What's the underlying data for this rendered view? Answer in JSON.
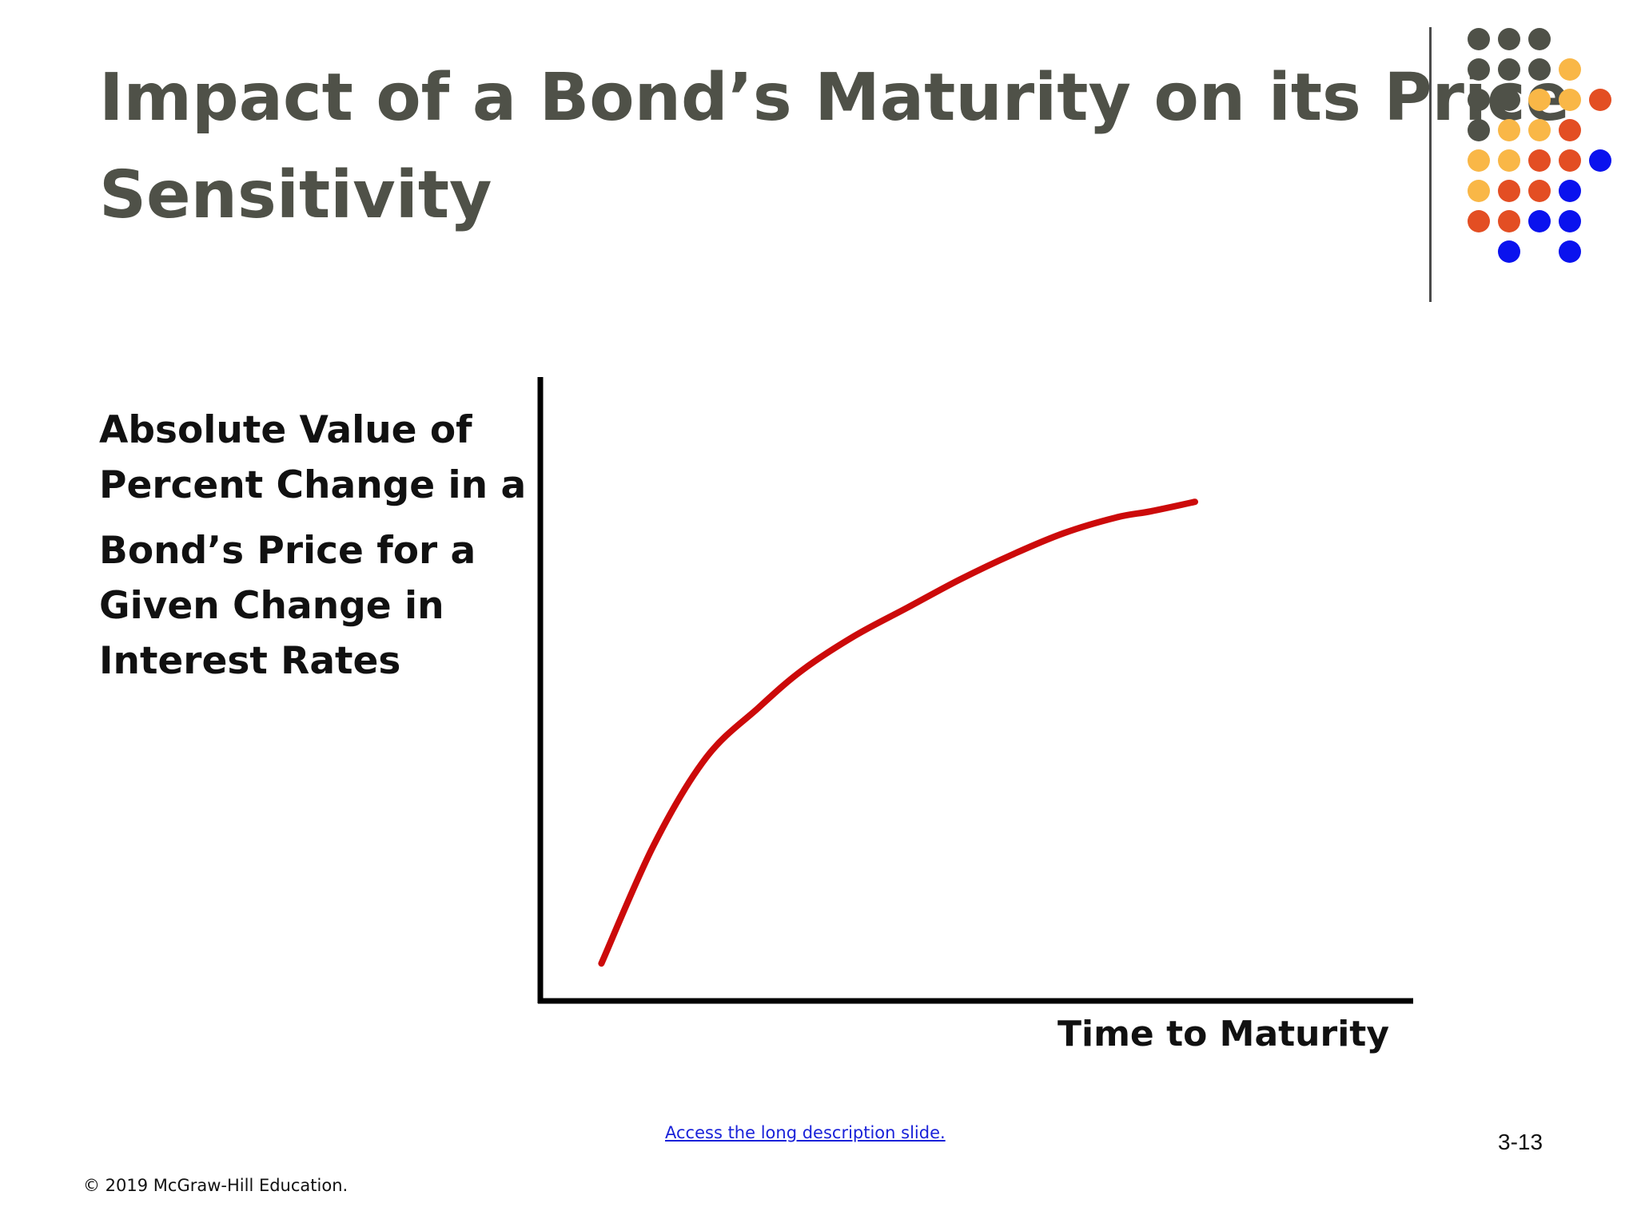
{
  "slide": {
    "title_lines": [
      "Impact of a Bond’s Maturity on its Price",
      "Sensitivity"
    ],
    "link_text": "Access the long description slide.",
    "slide_number": "3-13",
    "copyright": "© 2019 McGraw-Hill Education."
  },
  "colors": {
    "title": "#4f5148",
    "curve": "#cc0a0a",
    "axis": "#000000",
    "link": "#1a22d9",
    "dots": {
      "gray": "#4f5148",
      "yellow": "#f9b747",
      "orange": "#e34e23",
      "blue": "#0a12ee"
    }
  },
  "decor": {
    "dot_grid": [
      [
        "gray",
        "gray",
        "gray",
        null,
        null
      ],
      [
        "gray",
        "gray",
        "gray",
        "yellow",
        null
      ],
      [
        "gray",
        "gray",
        "yellow",
        "yellow",
        "orange"
      ],
      [
        "gray",
        "yellow",
        "yellow",
        "orange",
        null
      ],
      [
        "yellow",
        "yellow",
        "orange",
        "orange",
        "blue"
      ],
      [
        "yellow",
        "orange",
        "orange",
        "blue",
        null
      ],
      [
        "orange",
        "orange",
        "blue",
        "blue",
        null
      ],
      [
        null,
        "blue",
        null,
        "blue",
        null
      ]
    ]
  },
  "chart_data": {
    "type": "line",
    "title": "",
    "ylabel_lines": [
      "Absolute Value of",
      "Percent Change in a",
      "Bond’s Price for a",
      "Given Change in",
      "Interest Rates"
    ],
    "xlabel": "Time to Maturity",
    "xlim": [
      0,
      100
    ],
    "ylim": [
      0,
      100
    ],
    "grid": false,
    "legend": "none",
    "series": [
      {
        "x": [
          7,
          13,
          19,
          25,
          30,
          36,
          42,
          48,
          54,
          60,
          66,
          70,
          75
        ],
        "y": [
          6,
          25,
          39,
          47,
          53,
          58.5,
          63,
          67.5,
          71.5,
          75,
          77.5,
          78.5,
          80
        ]
      }
    ]
  }
}
